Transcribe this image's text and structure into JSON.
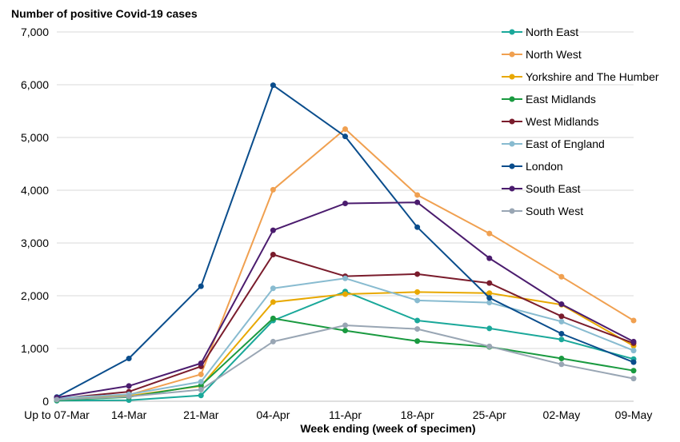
{
  "chart_data": {
    "type": "line",
    "title": "",
    "ylabel": "Number of positive Covid-19 cases",
    "xlabel": "Week ending (week of specimen)",
    "categories": [
      "Up to 07-Mar",
      "14-Mar",
      "21-Mar",
      "04-Apr",
      "11-Apr",
      "18-Apr",
      "25-Apr",
      "02-May",
      "09-May"
    ],
    "ylim": [
      0,
      7000
    ],
    "yticks": [
      0,
      1000,
      2000,
      3000,
      4000,
      5000,
      6000,
      7000
    ],
    "ytick_labels": [
      "0",
      "1,000",
      "2,000",
      "3,000",
      "4,000",
      "5,000",
      "6,000",
      "7,000"
    ],
    "grid": "horizontal",
    "legend_position": "right",
    "series": [
      {
        "name": "North East",
        "color": "#1aa89a",
        "values": [
          10,
          20,
          110,
          1530,
          2080,
          1530,
          1380,
          1170,
          800
        ]
      },
      {
        "name": "North West",
        "color": "#f0a050",
        "values": [
          40,
          120,
          510,
          4010,
          5160,
          3910,
          3180,
          2360,
          1530
        ]
      },
      {
        "name": "Yorkshire and The Humber",
        "color": "#e8a800",
        "values": [
          40,
          100,
          290,
          1880,
          2030,
          2070,
          2050,
          1830,
          1050
        ]
      },
      {
        "name": "East Midlands",
        "color": "#1a9a40",
        "values": [
          20,
          80,
          300,
          1570,
          1340,
          1140,
          1030,
          810,
          580
        ]
      },
      {
        "name": "West Midlands",
        "color": "#7a1c2c",
        "values": [
          50,
          180,
          660,
          2780,
          2370,
          2410,
          2240,
          1610,
          1100
        ]
      },
      {
        "name": "East of England",
        "color": "#88bbd0",
        "values": [
          60,
          130,
          370,
          2140,
          2330,
          1910,
          1870,
          1510,
          960
        ]
      },
      {
        "name": "London",
        "color": "#0a4d8c",
        "values": [
          80,
          810,
          2180,
          5990,
          5020,
          3300,
          1960,
          1280,
          740
        ]
      },
      {
        "name": "South East",
        "color": "#4b1c6e",
        "values": [
          70,
          290,
          720,
          3240,
          3750,
          3770,
          2710,
          1840,
          1130
        ]
      },
      {
        "name": "South West",
        "color": "#99a6b4",
        "values": [
          30,
          90,
          220,
          1130,
          1440,
          1370,
          1040,
          700,
          430
        ]
      }
    ]
  }
}
